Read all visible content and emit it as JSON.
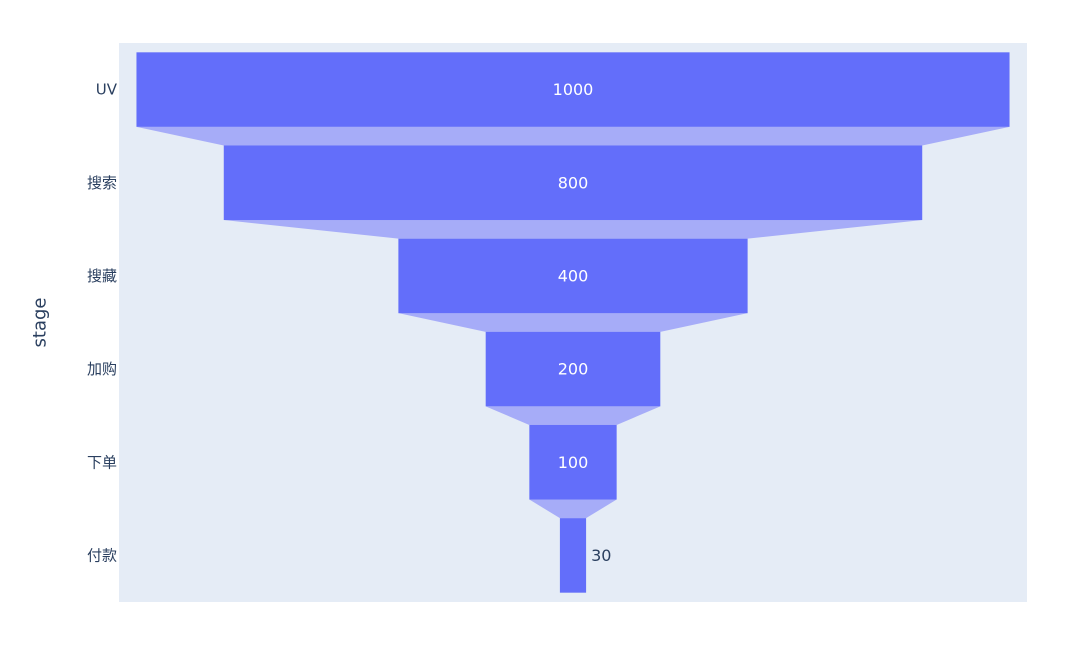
{
  "chart_data": {
    "type": "funnel",
    "ylabel": "stage",
    "categories": [
      "UV",
      "搜索",
      "搜藏",
      "加购",
      "下单",
      "付款"
    ],
    "values": [
      1000,
      800,
      400,
      200,
      100,
      30
    ],
    "labels": [
      "1000",
      "800",
      "400",
      "200",
      "100",
      "30"
    ],
    "xlim": [
      -520,
      520
    ],
    "grid": false,
    "legend": "none"
  },
  "colors": {
    "plot_background": "#e5ecf6",
    "bar": "#636efa",
    "connector": "#a6acf8",
    "label_inside": "#ffffff",
    "label_outside": "#2a3f5f",
    "text": "#2a3f5f"
  }
}
